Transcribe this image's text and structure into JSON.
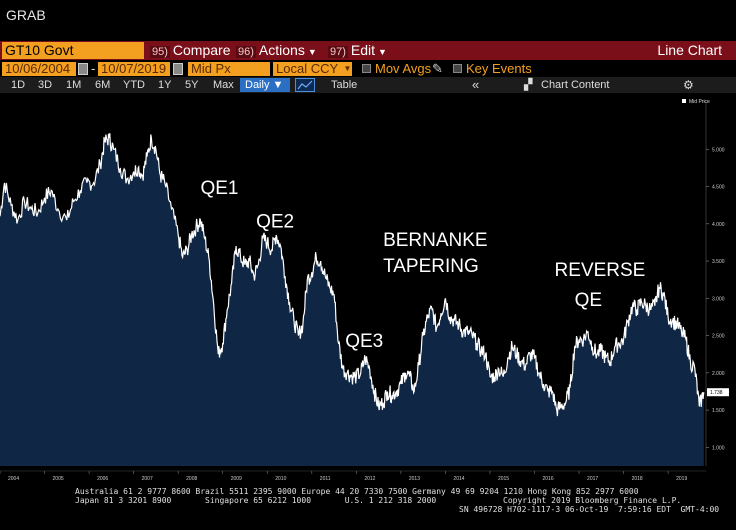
{
  "header": {
    "title": "GRAB"
  },
  "command_bar": {
    "ticker": "GT10 Govt",
    "menus": [
      {
        "num": "95)",
        "label": "Compare"
      },
      {
        "num": "96)",
        "label": "Actions"
      },
      {
        "num": "97)",
        "label": "Edit"
      }
    ],
    "chart_type": "Line Chart"
  },
  "params": {
    "start_date": "10/06/2004",
    "end_date": "10/07/2019",
    "field": "Mid Px",
    "currency": "Local CCY",
    "mov_avgs": "Mov Avgs",
    "key_events": "Key Events"
  },
  "range_bar": {
    "ranges": [
      "1D",
      "3D",
      "1M",
      "6M",
      "YTD",
      "1Y",
      "5Y",
      "Max"
    ],
    "frequency": "Daily",
    "table": "Table",
    "chart_content": "Chart Content"
  },
  "footer": {
    "line1": "Australia 61 2 9777 8600 Brazil 5511 2395 9000 Europe 44 20 7330 7500 Germany 49 69 9204 1210 Hong Kong 852 2977 6000",
    "line2a": "Japan 81 3 3201 8900       Singapore 65 6212 1000       U.S. 1 212 318 2000",
    "line2b": "Copyright 2019 Bloomberg Finance L.P.",
    "line3": "SN 496728 H702-1117-3 06-Oct-19  7:59:16 EDT  GMT-4:00"
  },
  "colors": {
    "accent": "#f3a020",
    "command_bar": "#7a0f1a",
    "area_fill": "#0f2744",
    "line": "#ffffff",
    "last_value_tag": "#ffffff"
  },
  "chart_data": {
    "type": "area",
    "legend": "Mid Price",
    "legend_position": "top-right",
    "last_value_label": "1.738",
    "ylim": [
      0.75,
      5.5
    ],
    "xlim": [
      2004.0,
      2019.85
    ],
    "y_ticks": [
      "1.000",
      "1.500",
      "2.000",
      "2.500",
      "3.000",
      "3.500",
      "4.000",
      "4.500",
      "5.000"
    ],
    "y_tick_values": [
      1.0,
      1.5,
      2.0,
      2.5,
      3.0,
      3.5,
      4.0,
      4.5,
      5.0
    ],
    "x_ticks": [
      "2004",
      "2005",
      "2006",
      "2007",
      "2008",
      "2009",
      "2010",
      "2011",
      "2012",
      "2013",
      "2014",
      "2015",
      "2016",
      "2017",
      "2018",
      "2019"
    ],
    "x_tick_values": [
      2004.0,
      2005.0,
      2006.0,
      2007.0,
      2008.0,
      2009.0,
      2010.0,
      2011.0,
      2012.0,
      2013.0,
      2014.0,
      2015.0,
      2016.0,
      2017.0,
      2018.0,
      2019.0
    ],
    "annotations": [
      {
        "text": "QE1",
        "x": 2008.5,
        "y": 4.4
      },
      {
        "text": "QE2",
        "x": 2009.75,
        "y": 3.95
      },
      {
        "text": "BERNANKE",
        "x": 2012.6,
        "y": 3.7
      },
      {
        "text": "TAPERING",
        "x": 2012.6,
        "y": 3.35
      },
      {
        "text": "QE3",
        "x": 2011.75,
        "y": 2.35
      },
      {
        "text": "REVERSE",
        "x": 2016.45,
        "y": 3.3
      },
      {
        "text": "QE",
        "x": 2016.9,
        "y": 2.9
      }
    ],
    "series": [
      {
        "x": [
          2004.0,
          2004.1,
          2004.25,
          2004.4,
          2004.55,
          2004.7,
          2004.85,
          2005.0,
          2005.15,
          2005.3,
          2005.5,
          2005.65,
          2005.8,
          2005.95,
          2006.1,
          2006.25,
          2006.35,
          2006.45,
          2006.55,
          2006.7,
          2006.85,
          2007.0,
          2007.1,
          2007.2,
          2007.3,
          2007.4,
          2007.5,
          2007.6,
          2007.7,
          2007.85,
          2008.0,
          2008.1,
          2008.2,
          2008.3,
          2008.4,
          2008.5,
          2008.6,
          2008.7,
          2008.8,
          2008.9,
          2009.0,
          2009.1,
          2009.2,
          2009.3,
          2009.4,
          2009.5,
          2009.6,
          2009.7,
          2009.8,
          2009.9,
          2010.0,
          2010.1,
          2010.2,
          2010.3,
          2010.4,
          2010.5,
          2010.6,
          2010.7,
          2010.8,
          2010.9,
          2011.0,
          2011.1,
          2011.2,
          2011.3,
          2011.4,
          2011.5,
          2011.6,
          2011.7,
          2011.8,
          2011.9,
          2012.0,
          2012.1,
          2012.2,
          2012.3,
          2012.4,
          2012.5,
          2012.6,
          2012.7,
          2012.8,
          2012.9,
          2013.0,
          2013.1,
          2013.2,
          2013.3,
          2013.4,
          2013.5,
          2013.6,
          2013.7,
          2013.8,
          2013.9,
          2014.0,
          2014.1,
          2014.2,
          2014.3,
          2014.4,
          2014.5,
          2014.6,
          2014.7,
          2014.8,
          2014.9,
          2015.0,
          2015.1,
          2015.2,
          2015.3,
          2015.4,
          2015.5,
          2015.6,
          2015.7,
          2015.8,
          2015.9,
          2016.0,
          2016.1,
          2016.2,
          2016.3,
          2016.4,
          2016.5,
          2016.6,
          2016.7,
          2016.8,
          2016.9,
          2017.0,
          2017.1,
          2017.2,
          2017.3,
          2017.4,
          2017.5,
          2017.6,
          2017.7,
          2017.8,
          2017.9,
          2018.0,
          2018.1,
          2018.2,
          2018.3,
          2018.4,
          2018.5,
          2018.6,
          2018.7,
          2018.8,
          2018.9,
          2019.0,
          2019.1,
          2019.2,
          2019.3,
          2019.4,
          2019.5,
          2019.6,
          2019.7,
          2019.8
        ],
        "values": [
          4.1,
          4.55,
          4.25,
          4.05,
          4.3,
          4.2,
          4.15,
          4.35,
          4.45,
          4.2,
          4.05,
          4.3,
          4.45,
          4.55,
          4.55,
          4.8,
          5.1,
          5.15,
          5.0,
          4.75,
          4.6,
          4.7,
          4.75,
          4.65,
          4.9,
          5.15,
          5.0,
          4.65,
          4.55,
          4.2,
          3.85,
          3.55,
          3.65,
          3.85,
          3.95,
          4.05,
          3.8,
          3.5,
          2.9,
          2.25,
          2.4,
          2.85,
          3.2,
          3.7,
          3.55,
          3.45,
          3.5,
          3.3,
          3.45,
          3.8,
          3.75,
          3.65,
          3.85,
          3.7,
          3.3,
          2.95,
          2.7,
          2.5,
          2.65,
          3.25,
          3.35,
          3.55,
          3.5,
          3.3,
          3.15,
          3.05,
          2.4,
          2.05,
          2.0,
          1.95,
          1.95,
          2.0,
          2.2,
          2.05,
          1.75,
          1.55,
          1.6,
          1.75,
          1.7,
          1.75,
          1.85,
          2.0,
          1.95,
          1.75,
          2.1,
          2.5,
          2.75,
          2.85,
          2.6,
          2.8,
          3.0,
          2.75,
          2.7,
          2.65,
          2.55,
          2.55,
          2.5,
          2.4,
          2.3,
          2.25,
          1.95,
          1.95,
          2.05,
          1.95,
          2.2,
          2.35,
          2.25,
          2.15,
          2.1,
          2.25,
          2.2,
          2.0,
          1.85,
          1.75,
          1.75,
          1.5,
          1.55,
          1.6,
          1.8,
          2.35,
          2.45,
          2.45,
          2.55,
          2.35,
          2.25,
          2.3,
          2.2,
          2.15,
          2.35,
          2.4,
          2.45,
          2.7,
          2.9,
          2.85,
          2.95,
          2.9,
          2.85,
          2.9,
          3.15,
          3.05,
          2.75,
          2.7,
          2.65,
          2.55,
          2.45,
          2.15,
          2.05,
          1.55,
          1.74
        ]
      }
    ]
  }
}
